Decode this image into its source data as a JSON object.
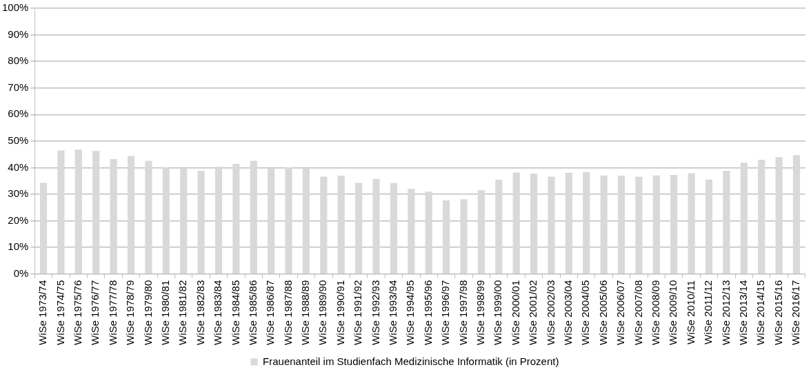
{
  "chart_data": {
    "type": "bar",
    "categories": [
      "WiSe 1973/74",
      "WiSe 1974/75",
      "WiSe 1975/76",
      "WiSe 1976/77",
      "WiSe 1977/78",
      "WiSe 1978/79",
      "WiSe 1979/80",
      "WiSe 1980/81",
      "WiSe 1981/82",
      "WiSe 1982/83",
      "WiSe 1983/84",
      "WiSe 1984/85",
      "WiSe 1985/86",
      "WiSe 1986/87",
      "WiSe 1987/88",
      "WiSe 1988/89",
      "WiSe 1989/90",
      "WiSe 1990/91",
      "WiSe 1991/92",
      "WiSe 1992/93",
      "WiSe 1993/94",
      "WiSe 1994/95",
      "WiSe 1995/96",
      "WiSe 1996/97",
      "WiSe 1997/98",
      "WiSe 1998/99",
      "WiSe 1999/00",
      "WiSe 2000/01",
      "WiSe 2001/02",
      "WiSe 2002/03",
      "WiSe 2003/04",
      "WiSe 2004/05",
      "WiSe 2005/06",
      "WiSe 2006/07",
      "WiSe 2007/08",
      "WiSe 2008/09",
      "WiSe 2009/10",
      "WiSe 2010/11",
      "WiSe 2011/12",
      "WiSe 2012/13",
      "WiSe 2013/14",
      "WiSe 2014/15",
      "WiSe 2015/16",
      "WiSe 2016/17"
    ],
    "series": [
      {
        "name": "Frauenanteil im Studienfach Medizinische Informatik (in Prozent)",
        "color": "#d9d9d9",
        "values": [
          34.3,
          46.5,
          46.8,
          46.3,
          43.2,
          44.4,
          42.6,
          40.2,
          39.8,
          38.8,
          40.4,
          41.4,
          42.6,
          39.9,
          40.2,
          39.8,
          36.6,
          37.0,
          34.3,
          35.8,
          34.2,
          32.0,
          31.0,
          27.7,
          28.1,
          31.5,
          35.5,
          38.2,
          37.8,
          36.6,
          38.1,
          38.4,
          37.1,
          37.0,
          36.6,
          37.1,
          37.3,
          37.9,
          35.5,
          38.8,
          41.9,
          43.0,
          44.0,
          44.7
        ]
      }
    ],
    "ylim": [
      0,
      100
    ],
    "yticks": [
      {
        "value": 0,
        "label": "0%"
      },
      {
        "value": 10,
        "label": "10%"
      },
      {
        "value": 20,
        "label": "20%"
      },
      {
        "value": 30,
        "label": "30%"
      },
      {
        "value": 40,
        "label": "40%"
      },
      {
        "value": 50,
        "label": "50%"
      },
      {
        "value": 60,
        "label": "60%"
      },
      {
        "value": 70,
        "label": "70%"
      },
      {
        "value": 80,
        "label": "80%"
      },
      {
        "value": 90,
        "label": "90%"
      },
      {
        "value": 100,
        "label": "100%"
      }
    ],
    "grid": "y",
    "legend": "bottom"
  }
}
